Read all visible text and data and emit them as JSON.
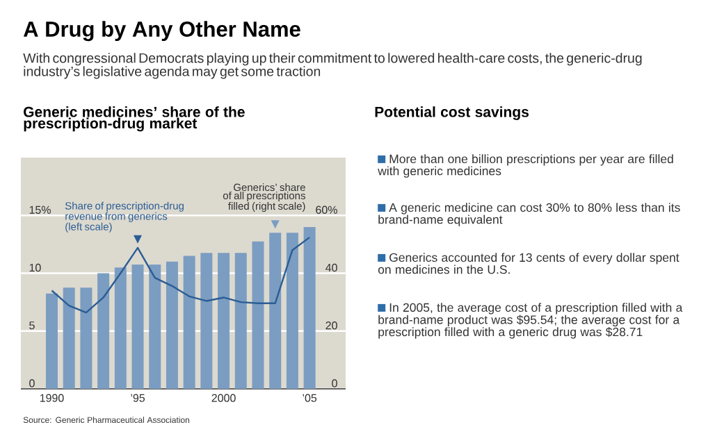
{
  "chart_data": {
    "type": "bar",
    "title": "A Drug by Any Other Name",
    "subtitle": "With congressional Democrats playing up their commitment to lowered health-care costs, the generic-drug industry’s legislative agenda may get some traction",
    "x": [
      1990,
      1991,
      1992,
      1993,
      1994,
      1995,
      1996,
      1997,
      1998,
      1999,
      2000,
      2001,
      2002,
      2003,
      2004,
      2005
    ],
    "series": [
      {
        "name": "Generics’ share of all prescriptions filled (right scale)",
        "axis": "y2",
        "color": "#7b9dc2",
        "values": [
          33,
          35,
          35,
          40,
          42,
          43,
          43,
          44,
          46,
          47,
          47,
          47,
          51,
          54,
          54,
          56
        ]
      },
      {
        "name": "Share of prescription-drug revenue from generics (left scale)",
        "type": "line",
        "axis": "y",
        "color": "#2b5d94",
        "values": [
          8.5,
          7.2,
          6.6,
          7.9,
          10.0,
          12.2,
          9.6,
          8.9,
          8.0,
          7.6,
          7.9,
          7.5,
          7.4,
          7.4,
          12.0,
          13.1
        ]
      }
    ],
    "xlim": [
      1988.2,
      2007.1
    ],
    "xticks": [
      1990,
      {
        "value": 1995,
        "label": "’95"
      },
      2000,
      {
        "value": 2005,
        "label": "’05"
      }
    ],
    "ylim": [
      0,
      20
    ],
    "yticks": [
      0,
      5,
      10,
      {
        "value": 15,
        "label": "15%"
      }
    ],
    "y2lim": [
      0,
      80
    ],
    "y2ticks": [
      0,
      20,
      40,
      {
        "value": 60,
        "label": "60%"
      }
    ],
    "grid": "y",
    "annotations": [
      "Generic medicines’ share of the prescription-drug market",
      "Potential cost savings",
      "More than one billion prescriptions per year are filled with generic medicines",
      "A generic medicine can cost 30% to 80% less than its brand-name equivalent",
      "Generics accounted for 13 cents of every dollar spent on medicines in the U.S.",
      "In 2005, the average cost of a prescription filled with a brand-name product was $95.54; the average cost for a prescription filled with a generic drug was $28.71",
      "Source: Generic Pharmaceutical Association"
    ]
  }
}
